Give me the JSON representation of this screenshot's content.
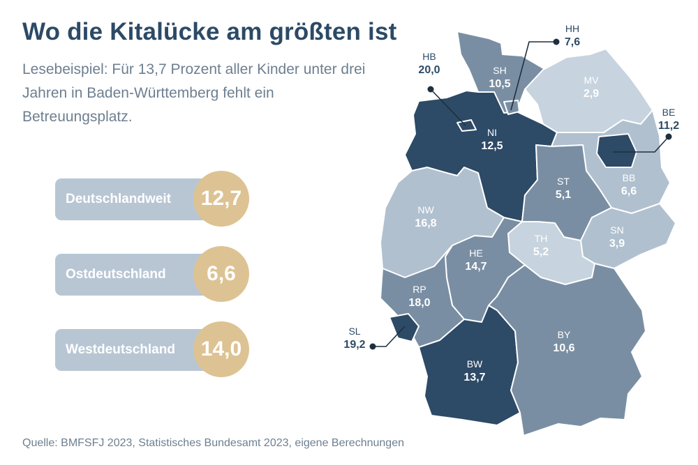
{
  "header": {
    "title": "Wo die Kitalücke am größten ist",
    "subtitle": "Lesebeispiel: Für 13,7 Prozent aller Kinder unter drei Jahren in Baden-Württemberg fehlt ein Betreuungsplatz."
  },
  "summary": [
    {
      "label": "Deutschlandweit",
      "value": "12,7"
    },
    {
      "label": "Ostdeutschland",
      "value": "6,6"
    },
    {
      "label": "Westdeutschland",
      "value": "14,0"
    }
  ],
  "colors": {
    "darkest": "#2d4a66",
    "dark": "#5a7189",
    "medium": "#7a8ea3",
    "light": "#b0c0cf",
    "lightest": "#c7d3de",
    "pill": "#b8c6d4",
    "circle": "#ddc393",
    "title": "#2c4a66"
  },
  "map": {
    "states": [
      {
        "abbr": "SH",
        "value": "10,5",
        "shade": "medium"
      },
      {
        "abbr": "HH",
        "value": "7,6",
        "shade": "medium"
      },
      {
        "abbr": "MV",
        "value": "2,9",
        "shade": "lightest"
      },
      {
        "abbr": "HB",
        "value": "20,0",
        "shade": "darkest"
      },
      {
        "abbr": "NI",
        "value": "12,5",
        "shade": "darkest"
      },
      {
        "abbr": "BE",
        "value": "11,2",
        "shade": "darkest"
      },
      {
        "abbr": "BB",
        "value": "6,6",
        "shade": "light"
      },
      {
        "abbr": "ST",
        "value": "5,1",
        "shade": "medium"
      },
      {
        "abbr": "NW",
        "value": "16,8",
        "shade": "light"
      },
      {
        "abbr": "SN",
        "value": "3,9",
        "shade": "light"
      },
      {
        "abbr": "TH",
        "value": "5,2",
        "shade": "lightest"
      },
      {
        "abbr": "HE",
        "value": "14,7",
        "shade": "medium"
      },
      {
        "abbr": "RP",
        "value": "18,0",
        "shade": "medium"
      },
      {
        "abbr": "SL",
        "value": "19,2",
        "shade": "darkest"
      },
      {
        "abbr": "BW",
        "value": "13,7",
        "shade": "darkest"
      },
      {
        "abbr": "BY",
        "value": "10,6",
        "shade": "medium"
      }
    ]
  },
  "footer": {
    "source": "Quelle: BMFSFJ 2023, Statistisches Bundesamt 2023, eigene Berechnungen"
  }
}
